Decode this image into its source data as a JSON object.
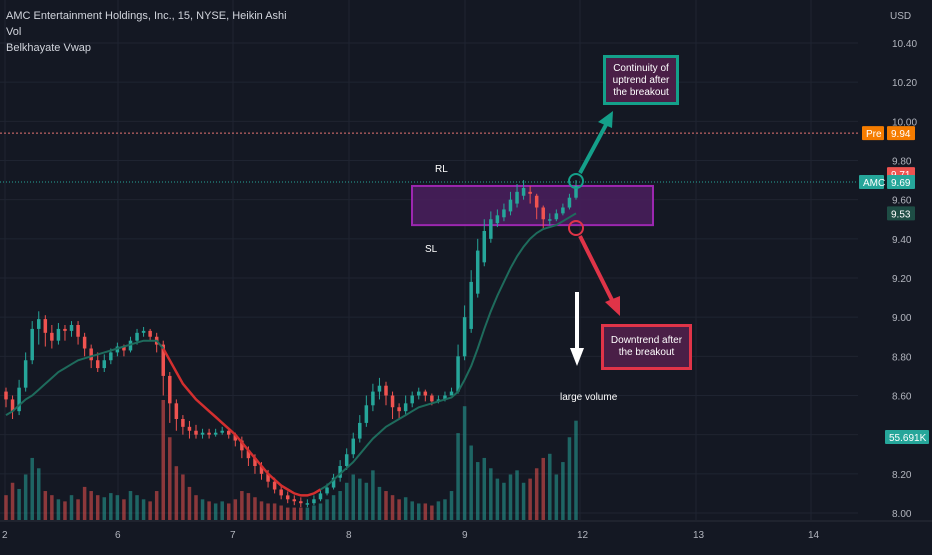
{
  "legend": {
    "title": "AMC Entertainment Holdings, Inc., 15, NYSE, Heikin Ashi",
    "vol": "Vol",
    "indicator": "Belkhayate Vwap"
  },
  "annotations": {
    "rl": "RL",
    "sl": "SL",
    "continuity": "Continuity of uptrend after the breakout",
    "downtrend": "Downtrend after the breakout",
    "large_volume": "large volume"
  },
  "price_axis": {
    "currency": "USD",
    "ticks": [
      "10.40",
      "10.20",
      "10.00",
      "9.80",
      "9.60",
      "9.40",
      "9.20",
      "9.00",
      "8.80",
      "8.60",
      "8.40",
      "8.20",
      "8.00"
    ],
    "pre_label": "Pre",
    "pre_value": "9.94",
    "red_value": "9.71",
    "symbol": "AMC",
    "last_value": "9.69",
    "vwap_value": "9.53",
    "volume_value": "55.691K"
  },
  "time_axis": {
    "ticks": [
      "2",
      "6",
      "7",
      "8",
      "9",
      "12",
      "13",
      "14"
    ]
  },
  "colors": {
    "background": "#141823",
    "up": "#26a69a",
    "down": "#ef5350",
    "vwap_green": "#1e6b5c",
    "vwap_red": "#d32f2f",
    "rect_border": "#9c27b0",
    "pre_line": "#e57373",
    "arrow_teal": "#14a08a",
    "arrow_red": "#e03448"
  },
  "chart_data": {
    "type": "candlestick",
    "title": "AMC Entertainment Holdings, Inc., 15, NYSE, Heikin Ashi",
    "ylim": [
      7.98,
      10.52
    ],
    "resistance_zone": [
      9.47,
      9.67
    ],
    "pre_market_price": 9.94,
    "last_price": 9.69,
    "x_day_ticks": [
      "2",
      "6",
      "7",
      "8",
      "9",
      "12",
      "13",
      "14"
    ],
    "candles": [
      [
        8.62,
        8.58,
        8.64,
        8.54
      ],
      [
        8.58,
        8.52,
        8.6,
        8.48
      ],
      [
        8.52,
        8.64,
        8.68,
        8.5
      ],
      [
        8.64,
        8.78,
        8.82,
        8.62
      ],
      [
        8.78,
        8.94,
        8.98,
        8.76
      ],
      [
        8.94,
        8.99,
        9.03,
        8.86
      ],
      [
        8.99,
        8.92,
        9.01,
        8.85
      ],
      [
        8.92,
        8.88,
        8.96,
        8.84
      ],
      [
        8.88,
        8.94,
        8.97,
        8.86
      ],
      [
        8.94,
        8.93,
        8.96,
        8.88
      ],
      [
        8.93,
        8.96,
        8.98,
        8.9
      ],
      [
        8.96,
        8.9,
        8.98,
        8.86
      ],
      [
        8.9,
        8.84,
        8.92,
        8.8
      ],
      [
        8.84,
        8.78,
        8.86,
        8.74
      ],
      [
        8.78,
        8.74,
        8.82,
        8.72
      ],
      [
        8.74,
        8.78,
        8.81,
        8.72
      ],
      [
        8.78,
        8.82,
        8.84,
        8.76
      ],
      [
        8.82,
        8.85,
        8.87,
        8.8
      ],
      [
        8.85,
        8.83,
        8.86,
        8.8
      ],
      [
        8.83,
        8.88,
        8.9,
        8.82
      ],
      [
        8.88,
        8.92,
        8.94,
        8.86
      ],
      [
        8.92,
        8.93,
        8.95,
        8.9
      ],
      [
        8.93,
        8.9,
        8.94,
        8.88
      ],
      [
        8.9,
        8.86,
        8.92,
        8.82
      ],
      [
        8.86,
        8.7,
        8.88,
        8.6
      ],
      [
        8.7,
        8.56,
        8.72,
        8.46
      ],
      [
        8.56,
        8.48,
        8.58,
        8.42
      ],
      [
        8.48,
        8.44,
        8.5,
        8.4
      ],
      [
        8.44,
        8.42,
        8.47,
        8.38
      ],
      [
        8.42,
        8.4,
        8.45,
        8.38
      ],
      [
        8.4,
        8.41,
        8.43,
        8.38
      ],
      [
        8.41,
        8.4,
        8.43,
        8.38
      ],
      [
        8.4,
        8.41,
        8.43,
        8.39
      ],
      [
        8.41,
        8.42,
        8.44,
        8.4
      ],
      [
        8.42,
        8.4,
        8.43,
        8.38
      ],
      [
        8.4,
        8.37,
        8.41,
        8.34
      ],
      [
        8.37,
        8.32,
        8.39,
        8.28
      ],
      [
        8.32,
        8.28,
        8.34,
        8.24
      ],
      [
        8.28,
        8.24,
        8.3,
        8.2
      ],
      [
        8.24,
        8.2,
        8.26,
        8.17
      ],
      [
        8.2,
        8.16,
        8.22,
        8.13
      ],
      [
        8.16,
        8.12,
        8.18,
        8.1
      ],
      [
        8.12,
        8.09,
        8.14,
        8.07
      ],
      [
        8.09,
        8.07,
        8.11,
        8.05
      ],
      [
        8.07,
        8.06,
        8.09,
        8.04
      ],
      [
        8.06,
        8.05,
        8.08,
        8.03
      ],
      [
        8.05,
        8.05,
        8.07,
        8.03
      ],
      [
        8.05,
        8.07,
        8.09,
        8.04
      ],
      [
        8.07,
        8.1,
        8.12,
        8.06
      ],
      [
        8.1,
        8.13,
        8.15,
        8.09
      ],
      [
        8.13,
        8.18,
        8.2,
        8.12
      ],
      [
        8.18,
        8.24,
        8.27,
        8.16
      ],
      [
        8.24,
        8.3,
        8.33,
        8.22
      ],
      [
        8.3,
        8.38,
        8.41,
        8.28
      ],
      [
        8.38,
        8.46,
        8.5,
        8.36
      ],
      [
        8.46,
        8.55,
        8.6,
        8.44
      ],
      [
        8.55,
        8.62,
        8.66,
        8.52
      ],
      [
        8.62,
        8.65,
        8.69,
        8.58
      ],
      [
        8.65,
        8.6,
        8.67,
        8.55
      ],
      [
        8.6,
        8.54,
        8.62,
        8.48
      ],
      [
        8.54,
        8.52,
        8.56,
        8.48
      ],
      [
        8.52,
        8.56,
        8.6,
        8.5
      ],
      [
        8.56,
        8.6,
        8.62,
        8.54
      ],
      [
        8.6,
        8.62,
        8.64,
        8.58
      ],
      [
        8.62,
        8.6,
        8.63,
        8.57
      ],
      [
        8.6,
        8.57,
        8.61,
        8.55
      ],
      [
        8.57,
        8.58,
        8.6,
        8.56
      ],
      [
        8.58,
        8.6,
        8.62,
        8.57
      ],
      [
        8.6,
        8.62,
        8.64,
        8.6
      ],
      [
        8.62,
        8.8,
        8.86,
        8.61
      ],
      [
        8.8,
        9.0,
        9.06,
        8.78
      ],
      [
        8.94,
        9.18,
        9.24,
        8.92
      ],
      [
        9.12,
        9.34,
        9.4,
        9.1
      ],
      [
        9.28,
        9.44,
        9.5,
        9.26
      ],
      [
        9.4,
        9.5,
        9.54,
        9.38
      ],
      [
        9.48,
        9.52,
        9.55,
        9.46
      ],
      [
        9.51,
        9.55,
        9.58,
        9.49
      ],
      [
        9.54,
        9.6,
        9.64,
        9.52
      ],
      [
        9.58,
        9.64,
        9.68,
        9.56
      ],
      [
        9.62,
        9.66,
        9.7,
        9.6
      ],
      [
        9.64,
        9.63,
        9.67,
        9.58
      ],
      [
        9.62,
        9.56,
        9.63,
        9.5
      ],
      [
        9.56,
        9.5,
        9.57,
        9.45
      ],
      [
        9.5,
        9.5,
        9.53,
        9.47
      ],
      [
        9.5,
        9.53,
        9.55,
        9.49
      ],
      [
        9.53,
        9.56,
        9.58,
        9.52
      ],
      [
        9.56,
        9.61,
        9.63,
        9.55
      ],
      [
        9.61,
        9.67,
        9.7,
        9.6
      ]
    ],
    "volume": [
      12,
      18,
      15,
      22,
      30,
      25,
      14,
      12,
      10,
      9,
      12,
      10,
      16,
      14,
      12,
      11,
      13,
      12,
      10,
      14,
      12,
      10,
      9,
      14,
      58,
      40,
      26,
      22,
      16,
      12,
      10,
      9,
      8,
      9,
      8,
      10,
      14,
      13,
      11,
      9,
      8,
      8,
      7,
      6,
      6,
      6,
      6,
      7,
      8,
      10,
      12,
      14,
      18,
      22,
      20,
      18,
      24,
      16,
      14,
      12,
      10,
      11,
      9,
      8,
      8,
      7,
      9,
      10,
      14,
      42,
      55,
      36,
      28,
      30,
      25,
      20,
      18,
      22,
      24,
      18,
      20,
      25,
      30,
      32,
      22,
      28,
      40,
      48
    ],
    "vwap": [
      8.5,
      8.52,
      8.55,
      8.58,
      8.6,
      8.63,
      8.66,
      8.69,
      8.72,
      8.74,
      8.76,
      8.78,
      8.79,
      8.8,
      8.81,
      8.82,
      8.83,
      8.84,
      8.85,
      8.86,
      8.87,
      8.88,
      8.88,
      8.88,
      8.84,
      8.78,
      8.72,
      8.66,
      8.62,
      8.58,
      8.55,
      8.52,
      8.49,
      8.46,
      8.43,
      8.4,
      8.36,
      8.32,
      8.28,
      8.24,
      8.2,
      8.17,
      8.14,
      8.12,
      8.1,
      8.09,
      8.09,
      8.1,
      8.12,
      8.14,
      8.17,
      8.2,
      8.23,
      8.26,
      8.3,
      8.34,
      8.38,
      8.41,
      8.44,
      8.46,
      8.48,
      8.5,
      8.52,
      8.54,
      8.55,
      8.56,
      8.57,
      8.58,
      8.59,
      8.62,
      8.68,
      8.75,
      8.84,
      8.94,
      9.03,
      9.11,
      9.18,
      9.25,
      9.31,
      9.36,
      9.4,
      9.43,
      9.45,
      9.46,
      9.47,
      9.49,
      9.51,
      9.53
    ],
    "vwap_red_range": [
      24,
      48
    ]
  }
}
